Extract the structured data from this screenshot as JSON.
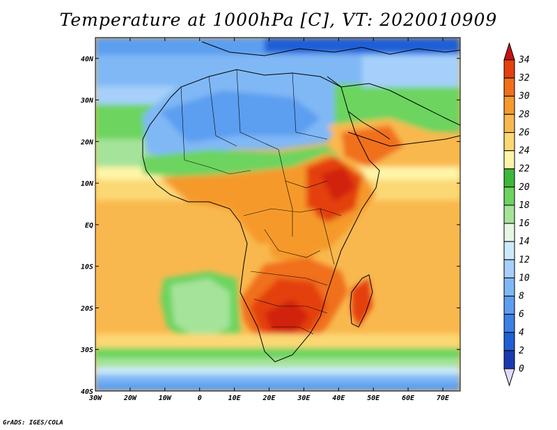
{
  "title": "Temperature at 1000hPa [C], VT: 2020010909",
  "footer": "GrADS: IGES/COLA",
  "map": {
    "variable": "Temperature at 1000hPa",
    "units": "C",
    "valid_time": "2020010909",
    "lon_range": [
      -30,
      75
    ],
    "lat_range": [
      -40,
      45
    ],
    "lon_ticks": [
      "30W",
      "20W",
      "10W",
      "0",
      "10E",
      "20E",
      "30E",
      "40E",
      "50E",
      "60E",
      "70E"
    ],
    "lat_ticks": [
      "40N",
      "30N",
      "20N",
      "10N",
      "EQ",
      "10S",
      "20S",
      "30S",
      "40S"
    ]
  },
  "colorbar": {
    "labels": [
      "0",
      "2",
      "4",
      "6",
      "8",
      "10",
      "12",
      "14",
      "16",
      "18",
      "20",
      "22",
      "24",
      "26",
      "28",
      "30",
      "32",
      "34"
    ],
    "colors": [
      "#161c6e",
      "#1a3bb0",
      "#1f5fd6",
      "#3c80e6",
      "#5c9ef0",
      "#80b8f6",
      "#a6d0fb",
      "#cdeafc",
      "#e6f8e4",
      "#a6e39a",
      "#6cd45e",
      "#3db83b",
      "#fff5a8",
      "#fcd874",
      "#f9b84e",
      "#f59a2c",
      "#f0701a",
      "#e4400e",
      "#d0240c"
    ],
    "end_low_color": "#e0dcf8",
    "end_high_color": "#c81010"
  }
}
